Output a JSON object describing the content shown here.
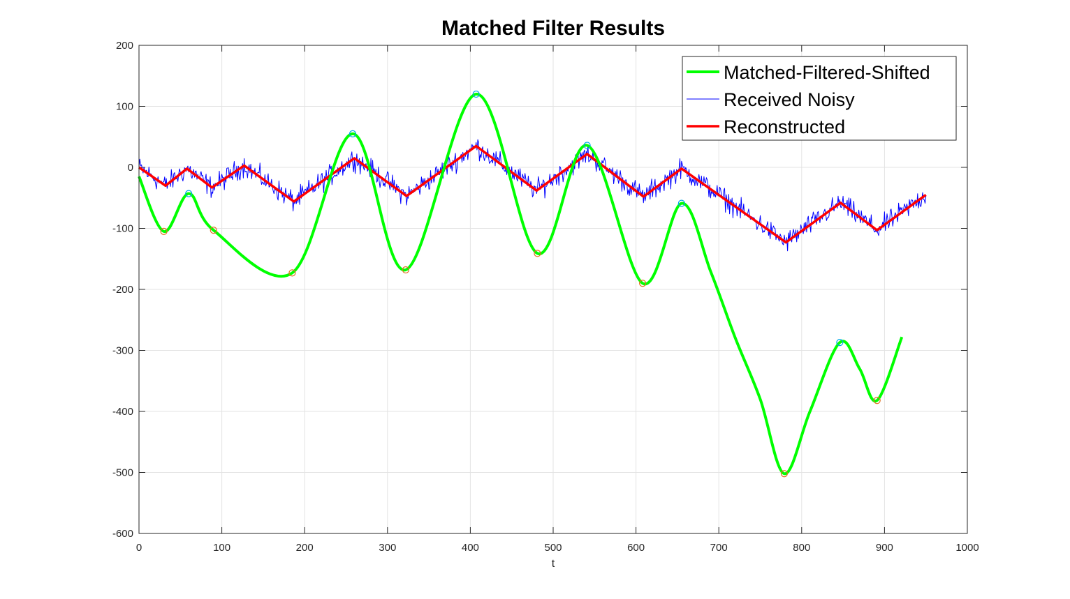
{
  "chart_data": {
    "type": "line",
    "title": "Matched Filter Results",
    "xlabel": "t",
    "ylabel": "",
    "xlim": [
      0,
      1000
    ],
    "ylim": [
      -600,
      200
    ],
    "xticks": [
      0,
      100,
      200,
      300,
      400,
      500,
      600,
      700,
      800,
      900,
      1000
    ],
    "yticks": [
      -600,
      -500,
      -400,
      -300,
      -200,
      -100,
      0,
      100,
      200
    ],
    "grid": true,
    "legend_position": "top-right",
    "series": [
      {
        "name": "Matched-Filtered-Shifted",
        "color": "#00ff00",
        "style": "smooth",
        "x": [
          0,
          30,
          60,
          90,
          185,
          258,
          322,
          407,
          481,
          541,
          608,
          655,
          690,
          720,
          750,
          779,
          810,
          846,
          870,
          891,
          921
        ],
        "y": [
          -15,
          -105,
          -43,
          -103,
          -173,
          55,
          -168,
          120,
          -141,
          36,
          -190,
          -59,
          -170,
          -280,
          -380,
          -502,
          -400,
          -287,
          -330,
          -382,
          -278
        ]
      },
      {
        "name": "Received Noisy",
        "color": "#0000ff",
        "style": "noisy",
        "noise_amplitude": 10,
        "x": [
          0,
          32,
          58,
          88,
          127,
          187,
          260,
          323,
          407,
          480,
          541,
          609,
          655,
          781,
          847,
          891,
          950
        ],
        "y": [
          0,
          -30,
          -2,
          -33,
          3,
          -56,
          15,
          -47,
          35,
          -38,
          22,
          -48,
          -2,
          -123,
          -58,
          -103,
          -45
        ]
      },
      {
        "name": "Reconstructed",
        "color": "#ff0000",
        "style": "linear",
        "x": [
          0,
          32,
          58,
          88,
          127,
          187,
          260,
          323,
          407,
          480,
          541,
          609,
          655,
          781,
          847,
          891,
          950
        ],
        "y": [
          0,
          -30,
          -2,
          -33,
          3,
          -56,
          15,
          -47,
          35,
          -38,
          22,
          -48,
          -2,
          -123,
          -58,
          -103,
          -45
        ]
      }
    ],
    "markers": {
      "maxima": {
        "color": "#00a8e8",
        "x": [
          60,
          258,
          407,
          541,
          655,
          846
        ],
        "y": [
          -43,
          55,
          120,
          36,
          -59,
          -287
        ]
      },
      "minima": {
        "color": "#e07020",
        "x": [
          30,
          90,
          185,
          322,
          481,
          608,
          779,
          891
        ],
        "y": [
          -105,
          -103,
          -173,
          -168,
          -141,
          -190,
          -502,
          -382
        ]
      }
    }
  }
}
